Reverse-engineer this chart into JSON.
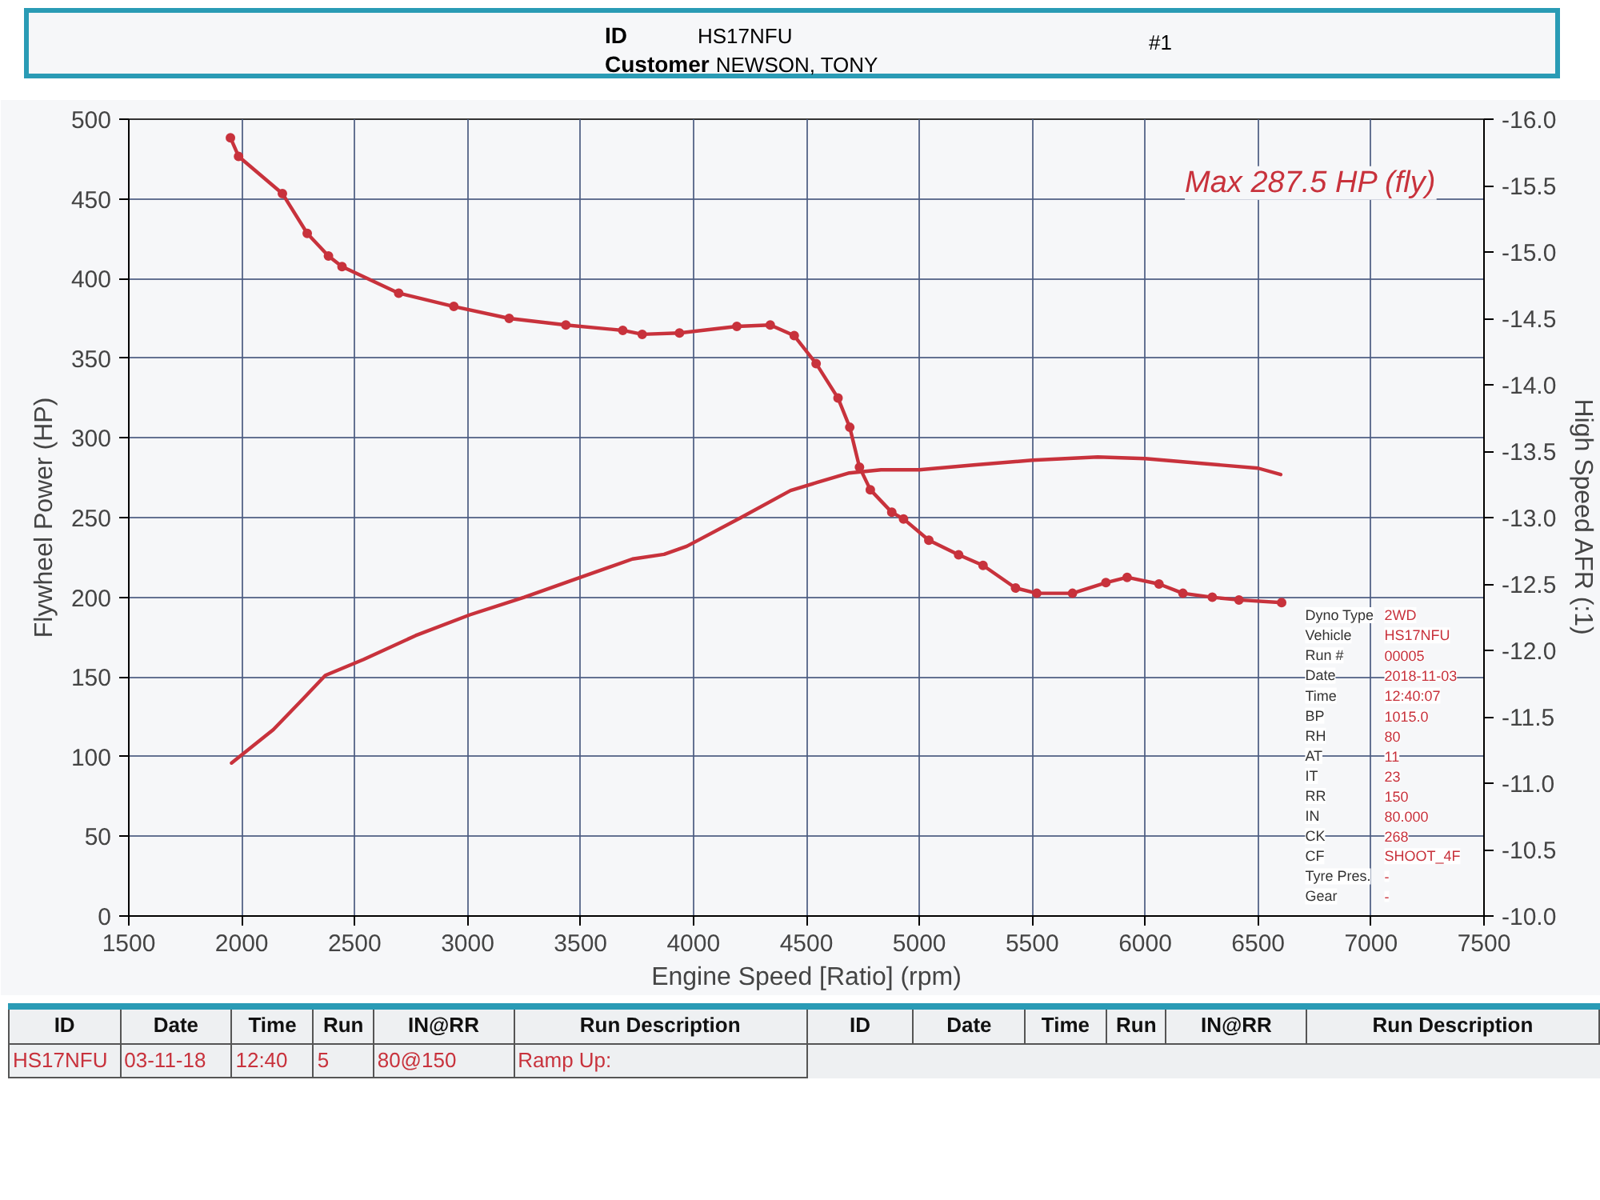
{
  "chart_data": {
    "type": "line",
    "xlabel": "Engine Speed [Ratio] (rpm)",
    "ylabel": "Flywheel Power (HP)",
    "y2label": "High Speed AFR (:1)",
    "xlim": [
      1500,
      7500
    ],
    "xticks": [
      1500,
      2000,
      2500,
      3000,
      3500,
      4000,
      4500,
      5000,
      5500,
      6000,
      6500,
      7000,
      7500
    ],
    "ylim": [
      0,
      500
    ],
    "yticks": [
      0,
      50,
      100,
      150,
      200,
      250,
      300,
      350,
      400,
      450,
      500
    ],
    "y2lim": [
      -10,
      -16
    ],
    "y2ticks": [
      {
        "value": -10,
        "label": "-10.0"
      },
      -10.5,
      {
        "value": -11,
        "label": "-11.0"
      },
      -11.5,
      {
        "value": -12,
        "label": "-12.0"
      },
      -12.5,
      {
        "value": -13,
        "label": "-13.0"
      },
      -13.5,
      {
        "value": -14,
        "label": "-14.0"
      },
      -14.5,
      {
        "value": -15,
        "label": "-15.0"
      },
      -15.5,
      {
        "value": -16,
        "label": "-16.0"
      }
    ],
    "grid": true,
    "series": [
      {
        "color": "#c8323c",
        "x": [
          1955,
          2140,
          2270,
          2370,
          2540,
          2770,
          3010,
          3250,
          3490,
          3730,
          3870,
          3970,
          4210,
          4430,
          4546,
          4690,
          4830,
          5000,
          5240,
          5500,
          5790,
          6000,
          6250,
          6500,
          6600
        ],
        "values": [
          96,
          117,
          136,
          151,
          161,
          176,
          189,
          200,
          212,
          224,
          227,
          232,
          250,
          267,
          272,
          278,
          280,
          280,
          283,
          286,
          288,
          287,
          284,
          281,
          277
        ]
      },
      {
        "color": "#c8323c",
        "axis": "y2",
        "marker": "circle",
        "x": [
          1950,
          1986,
          2180,
          2290,
          2384,
          2444,
          2695,
          2939,
          3184,
          3435,
          3687,
          3773,
          3938,
          4192,
          4340,
          4446,
          4543,
          4640,
          4692,
          4735,
          4783,
          4878,
          4930,
          5042,
          5174,
          5282,
          5426,
          5520,
          5678,
          5826,
          5920,
          6061,
          6167,
          6297,
          6415,
          6604
        ],
        "values": [
          -15.86,
          -15.72,
          -15.44,
          -15.14,
          -14.97,
          -14.89,
          -14.69,
          -14.59,
          -14.5,
          -14.45,
          -14.41,
          -14.38,
          -14.39,
          -14.44,
          -14.45,
          -14.37,
          -14.16,
          -13.9,
          -13.68,
          -13.38,
          -13.21,
          -13.04,
          -12.99,
          -12.83,
          -12.72,
          -12.64,
          -12.47,
          -12.43,
          -12.43,
          -12.51,
          -12.55,
          -12.5,
          -12.43,
          -12.4,
          -12.38,
          -12.36
        ]
      }
    ],
    "annotations": [
      "Max 287.5 HP (fly)",
      "ID",
      "HS17NFU",
      "Customer",
      "NEWSON, TONY",
      "#1",
      "Dyno Type",
      "2WD",
      "Vehicle",
      "HS17NFU",
      "Run #",
      "00005",
      "Date",
      "2018-11-03",
      "Time",
      "12:40:07",
      "BP",
      "1015.0",
      "RH",
      "80",
      "AT",
      "11",
      "IT",
      "23",
      "RR",
      "150",
      "IN",
      "80.000",
      "CK",
      "268",
      "CF",
      "SHOOT_4F",
      "Tyre Pres.",
      "-",
      "Gear",
      "-",
      "ID",
      "Date",
      "Time",
      "Run",
      "IN@RR",
      "Run Description",
      "HS17NFU",
      "03-11-18",
      "12:40",
      "5",
      "80@150",
      "Ramp Up:",
      "ID",
      "Date",
      "Time",
      "Run",
      "IN@RR",
      "Run Description"
    ]
  }
}
